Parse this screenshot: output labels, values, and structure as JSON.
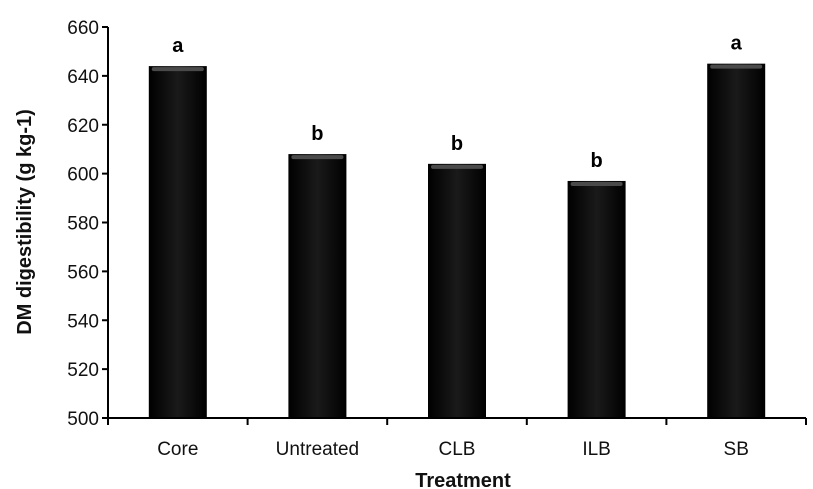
{
  "chart_data": {
    "type": "bar",
    "title": "",
    "xlabel": "Treatment",
    "ylabel": "DM digestibility (g kg-1)",
    "categories": [
      "Core",
      "Untreated",
      "CLB",
      "ILB",
      "SB"
    ],
    "values": [
      644,
      608,
      604,
      597,
      645
    ],
    "significance_letters": [
      "a",
      "b",
      "b",
      "b",
      "a"
    ],
    "ylim": [
      500,
      660
    ],
    "yticks": [
      500,
      520,
      540,
      560,
      580,
      600,
      620,
      640,
      660
    ],
    "grid": false,
    "legend": "none",
    "colors": {
      "bar": "#0a0a0a",
      "bar_highlight": "#4a4a4a",
      "axis": "#000000"
    }
  }
}
